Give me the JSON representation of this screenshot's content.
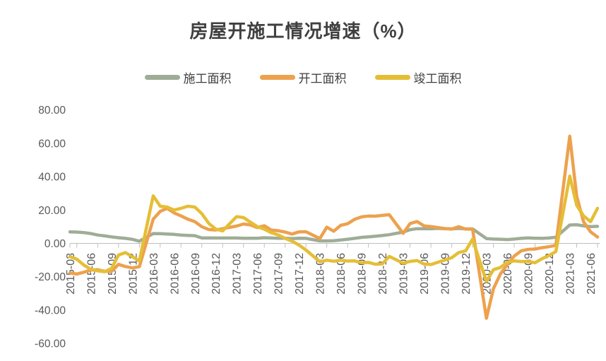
{
  "title": "房屋开施工情况增速（%）",
  "chart_data": {
    "type": "line",
    "title": "房屋开施工情况增速（%）",
    "xlabel": "",
    "ylabel": "",
    "ylim": [
      -60,
      80
    ],
    "grid": false,
    "legend_position": "top",
    "y_ticks": [
      80,
      60,
      40,
      20,
      0,
      -20,
      -40,
      -60
    ],
    "y_tick_labels": [
      "80.00",
      "60.00",
      "40.00",
      "20.00",
      "0.00",
      "-20.00",
      "-40.00",
      "-60.00"
    ],
    "x_ticklabels": [
      "2015-03",
      "2015-06",
      "2015-09",
      "2015-12",
      "2016-03",
      "2016-06",
      "2016-09",
      "2016-12",
      "2017-03",
      "2017-06",
      "2017-09",
      "2017-12",
      "2018-03",
      "2018-06",
      "2018-09",
      "2018-12",
      "2019-03",
      "2019-06",
      "2019-09",
      "2019-12",
      "2020-03",
      "2020-06",
      "2020-09",
      "2020-12",
      "2021-03",
      "2021-06"
    ],
    "x": [
      "2015-02",
      "2015-03",
      "2015-04",
      "2015-05",
      "2015-06",
      "2015-07",
      "2015-08",
      "2015-09",
      "2015-10",
      "2015-11",
      "2015-12",
      "2016-02",
      "2016-03",
      "2016-04",
      "2016-05",
      "2016-06",
      "2016-07",
      "2016-08",
      "2016-09",
      "2016-10",
      "2016-11",
      "2016-12",
      "2017-02",
      "2017-03",
      "2017-04",
      "2017-05",
      "2017-06",
      "2017-07",
      "2017-08",
      "2017-09",
      "2017-10",
      "2017-11",
      "2017-12",
      "2018-02",
      "2018-03",
      "2018-04",
      "2018-05",
      "2018-06",
      "2018-07",
      "2018-08",
      "2018-09",
      "2018-10",
      "2018-11",
      "2018-12",
      "2019-02",
      "2019-03",
      "2019-04",
      "2019-05",
      "2019-06",
      "2019-07",
      "2019-08",
      "2019-09",
      "2019-10",
      "2019-11",
      "2019-12",
      "2020-02",
      "2020-03",
      "2020-04",
      "2020-05",
      "2020-06",
      "2020-07",
      "2020-08",
      "2020-09",
      "2020-10",
      "2020-11",
      "2020-12",
      "2021-02",
      "2021-03",
      "2021-04",
      "2021-05",
      "2021-06"
    ],
    "series": [
      {
        "name": "施工面积",
        "id": "construction-area",
        "color": "#9FAD97",
        "values": [
          6.9,
          6.8,
          6.5,
          5.9,
          5.0,
          4.5,
          3.9,
          3.4,
          3.0,
          2.4,
          1.3,
          5.9,
          5.8,
          5.6,
          5.4,
          5.0,
          4.8,
          4.6,
          3.2,
          3.3,
          3.2,
          3.2,
          3.2,
          3.1,
          3.1,
          3.1,
          3.4,
          3.2,
          3.1,
          3.1,
          2.9,
          3.1,
          3.0,
          1.5,
          1.5,
          1.6,
          2.0,
          2.5,
          3.0,
          3.6,
          3.9,
          4.3,
          4.7,
          5.2,
          6.8,
          8.2,
          8.8,
          8.8,
          8.8,
          9.0,
          8.8,
          8.7,
          9.0,
          8.7,
          8.7,
          2.9,
          2.6,
          2.5,
          2.3,
          2.6,
          3.0,
          3.3,
          3.1,
          3.0,
          3.2,
          3.7,
          11.0,
          11.2,
          10.5,
          10.1,
          10.2
        ]
      },
      {
        "name": "开工面积",
        "id": "new-starts-area",
        "color": "#EDA14D",
        "values": [
          -17.7,
          -18.4,
          -17.3,
          -16.0,
          -15.8,
          -16.8,
          -16.8,
          -12.6,
          -13.9,
          -14.7,
          -14.0,
          14.5,
          19.2,
          21.0,
          18.3,
          16.5,
          14.5,
          13.0,
          10.0,
          8.3,
          8.0,
          8.8,
          10.4,
          11.6,
          11.1,
          9.5,
          10.6,
          8.0,
          7.6,
          6.8,
          5.6,
          6.9,
          7.0,
          2.9,
          9.7,
          7.3,
          10.8,
          11.8,
          14.4,
          15.9,
          16.4,
          16.3,
          16.8,
          17.2,
          6.0,
          11.9,
          13.1,
          10.5,
          10.1,
          9.5,
          8.9,
          8.6,
          10.0,
          8.6,
          8.5,
          -44.9,
          -27.2,
          -18.4,
          -12.8,
          -7.6,
          -4.5,
          -3.6,
          -3.4,
          -2.6,
          -2.0,
          -1.2,
          64.3,
          28.2,
          12.9,
          6.9,
          3.8
        ]
      },
      {
        "name": "竣工面积",
        "id": "completed-area",
        "color": "#E5BE36",
        "values": [
          -8.0,
          -9.5,
          -13.0,
          -15.5,
          -16.5,
          -17.0,
          -15.0,
          -7.0,
          -5.5,
          -8.0,
          -10.5,
          28.5,
          22.3,
          21.8,
          20.0,
          21.0,
          22.3,
          21.8,
          17.8,
          12.0,
          8.6,
          7.5,
          16.0,
          15.5,
          12.7,
          10.0,
          8.5,
          6.4,
          5.1,
          3.0,
          1.3,
          -1.0,
          -4.0,
          -11.0,
          -10.1,
          -10.7,
          -10.1,
          -10.6,
          -10.5,
          -11.6,
          -11.4,
          -12.5,
          -12.3,
          -7.8,
          -11.9,
          -10.8,
          -10.3,
          -12.4,
          -12.7,
          -11.3,
          -10.0,
          -8.6,
          -5.5,
          -4.5,
          2.6,
          -22.9,
          -15.8,
          -14.5,
          -11.3,
          -10.5,
          -10.9,
          -10.8,
          -11.6,
          -9.2,
          -7.3,
          -4.9,
          40.4,
          22.9,
          16.5,
          13.0,
          21.0
        ]
      }
    ]
  }
}
